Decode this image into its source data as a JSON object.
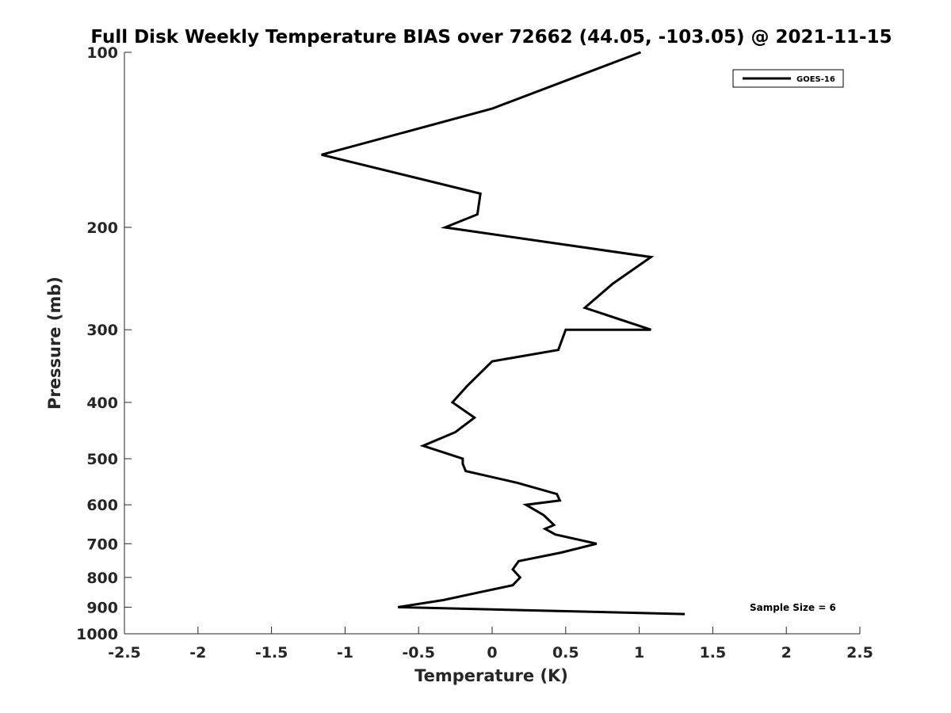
{
  "chart_data": {
    "type": "line",
    "title": "Full Disk Weekly Temperature BIAS over 72662 (44.05, -103.05) @ 2021-11-15",
    "xlabel": "Temperature (K)",
    "ylabel": "Pressure (mb)",
    "xlim": [
      -2.5,
      2.5
    ],
    "ylim": [
      100,
      1000
    ],
    "yscale": "log",
    "yreversed": true,
    "grid": false,
    "x_ticks": [
      -2.5,
      -2,
      -1.5,
      -1,
      -0.5,
      0,
      0.5,
      1,
      1.5,
      2,
      2.5
    ],
    "x_tick_labels": [
      "-2.5",
      "-2",
      "-1.5",
      "-1",
      "-0.5",
      "0",
      "0.5",
      "1",
      "1.5",
      "2",
      "2.5"
    ],
    "y_ticks": [
      100,
      200,
      300,
      400,
      500,
      600,
      700,
      800,
      900,
      1000
    ],
    "y_tick_labels": [
      "100",
      "200",
      "300",
      "400",
      "500",
      "600",
      "700",
      "800",
      "900",
      "1000"
    ],
    "legend_position": "top-right",
    "annotation": "Sample Size = 6",
    "series": [
      {
        "name": "GOES-16",
        "color": "#000000",
        "points": [
          {
            "x": 1.01,
            "p": 100
          },
          {
            "x": 0.0,
            "p": 125
          },
          {
            "x": -1.16,
            "p": 150
          },
          {
            "x": -0.08,
            "p": 175
          },
          {
            "x": -0.1,
            "p": 190
          },
          {
            "x": -0.32,
            "p": 200
          },
          {
            "x": 1.08,
            "p": 225
          },
          {
            "x": 0.82,
            "p": 250
          },
          {
            "x": 0.63,
            "p": 275
          },
          {
            "x": 1.08,
            "p": 300
          },
          {
            "x": 0.5,
            "p": 300
          },
          {
            "x": 0.45,
            "p": 325
          },
          {
            "x": 0.0,
            "p": 340
          },
          {
            "x": -0.17,
            "p": 375
          },
          {
            "x": -0.27,
            "p": 400
          },
          {
            "x": -0.12,
            "p": 425
          },
          {
            "x": -0.25,
            "p": 450
          },
          {
            "x": -0.47,
            "p": 475
          },
          {
            "x": -0.2,
            "p": 500
          },
          {
            "x": -0.2,
            "p": 510
          },
          {
            "x": -0.18,
            "p": 525
          },
          {
            "x": 0.17,
            "p": 550
          },
          {
            "x": 0.44,
            "p": 575
          },
          {
            "x": 0.46,
            "p": 590
          },
          {
            "x": 0.23,
            "p": 600
          },
          {
            "x": 0.35,
            "p": 625
          },
          {
            "x": 0.42,
            "p": 650
          },
          {
            "x": 0.36,
            "p": 660
          },
          {
            "x": 0.43,
            "p": 675
          },
          {
            "x": 0.71,
            "p": 700
          },
          {
            "x": 0.47,
            "p": 725
          },
          {
            "x": 0.18,
            "p": 750
          },
          {
            "x": 0.14,
            "p": 775
          },
          {
            "x": 0.19,
            "p": 800
          },
          {
            "x": 0.14,
            "p": 825
          },
          {
            "x": -0.1,
            "p": 850
          },
          {
            "x": -0.33,
            "p": 875
          },
          {
            "x": -0.64,
            "p": 900
          },
          {
            "x": 1.31,
            "p": 925
          }
        ]
      }
    ]
  }
}
